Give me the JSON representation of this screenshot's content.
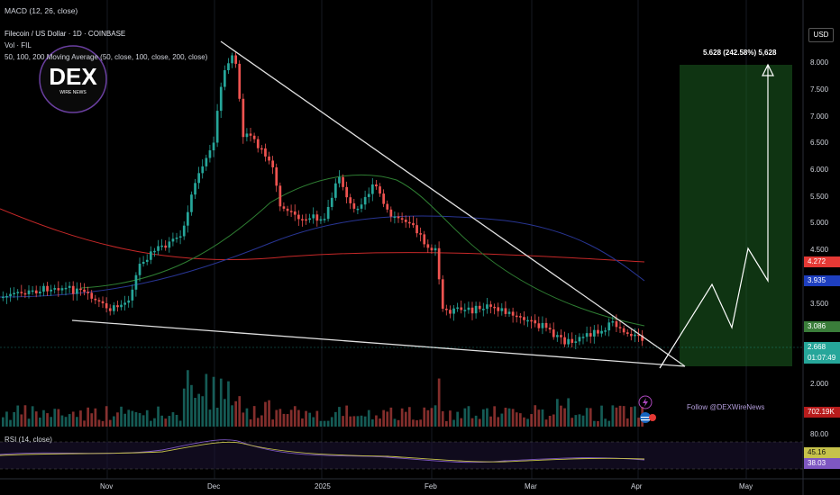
{
  "header": {
    "macd_label": "MACD (12, 26, close)",
    "symbol_line": "Filecoin / US Dollar · 1D · COINBASE",
    "vol_label": "Vol · FIL",
    "ma_label": "50, 100, 200 Moving Average (50, close, 100, close, 200, close)"
  },
  "logo": {
    "text": "DEX",
    "subtext": "WIRE NEWS"
  },
  "price_axis": {
    "currency": "USD",
    "ticks": [
      "8.000",
      "7.500",
      "7.000",
      "6.500",
      "6.000",
      "5.500",
      "5.000",
      "4.500",
      "3.500",
      "2.000"
    ],
    "tags": {
      "ma200": {
        "value": "4.272",
        "color": "#e53935"
      },
      "ma100": {
        "value": "3.935",
        "color": "#1e3fbf"
      },
      "ma50": {
        "value": "3.086",
        "color": "#3a7d3a"
      },
      "last": {
        "value": "2.668",
        "color": "#26a69a"
      },
      "countdown": {
        "value": "01:07:49",
        "color": "#26a69a"
      },
      "volume": {
        "value": "702.19K",
        "color": "#b71c1c"
      }
    }
  },
  "projection": {
    "label": "5.628 (242.58%) 5,628"
  },
  "follow_text": "Follow @DEXWireNews",
  "rsi": {
    "label": "RSI (14, close)",
    "ticks": [
      "80.00"
    ],
    "rsi_value": "45.16",
    "ma_value": "38.03"
  },
  "time_axis": {
    "labels": [
      "Nov",
      "Dec",
      "2025",
      "Feb",
      "Mar",
      "Apr",
      "May"
    ]
  },
  "colors": {
    "up": "#26a69a",
    "down": "#ef5350",
    "ma50": "#2e7d32",
    "ma100": "#283593",
    "ma200": "#c62828"
  }
}
